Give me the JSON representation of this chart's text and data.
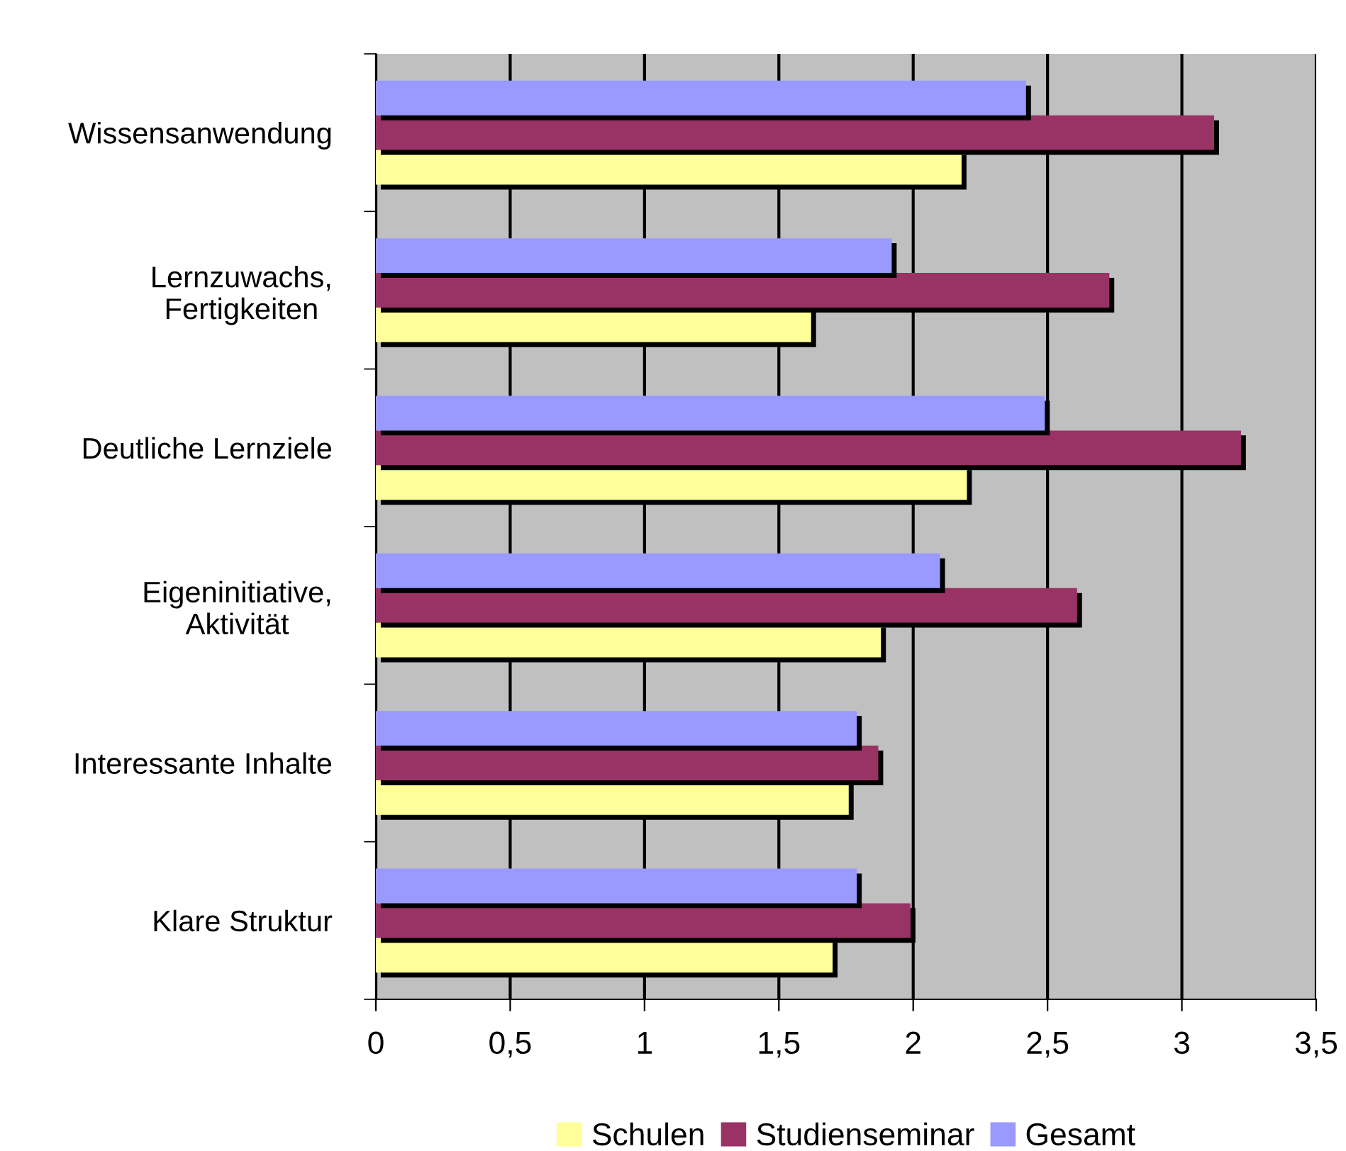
{
  "chart_data": {
    "type": "bar",
    "orientation": "horizontal",
    "categories": [
      "Wissensanwendung",
      "Lernzuwachs,\nFertigkeiten",
      "Deutliche Lernziele",
      "Eigeninitiative,\nAktivität",
      "Interessante Inhalte",
      "Klare Struktur"
    ],
    "series": [
      {
        "name": "Schulen",
        "color": "#ffff99",
        "values": [
          2.18,
          1.62,
          2.2,
          1.88,
          1.76,
          1.7
        ]
      },
      {
        "name": "Studienseminar",
        "color": "#993366",
        "values": [
          3.12,
          2.73,
          3.22,
          2.61,
          1.87,
          1.99
        ]
      },
      {
        "name": "Gesamt",
        "color": "#9999ff",
        "values": [
          2.42,
          1.92,
          2.49,
          2.1,
          1.79,
          1.79
        ]
      }
    ],
    "xlim": [
      0,
      3.5
    ],
    "xticks": [
      {
        "value": 0,
        "label": "0"
      },
      {
        "value": 0.5,
        "label": "0,5"
      },
      {
        "value": 1,
        "label": "1"
      },
      {
        "value": 1.5,
        "label": "1,5"
      },
      {
        "value": 2,
        "label": "2"
      },
      {
        "value": 2.5,
        "label": "2,5"
      },
      {
        "value": 3,
        "label": "3"
      },
      {
        "value": 3.5,
        "label": "3,5"
      }
    ],
    "grid": "x",
    "legend": "bottom"
  }
}
